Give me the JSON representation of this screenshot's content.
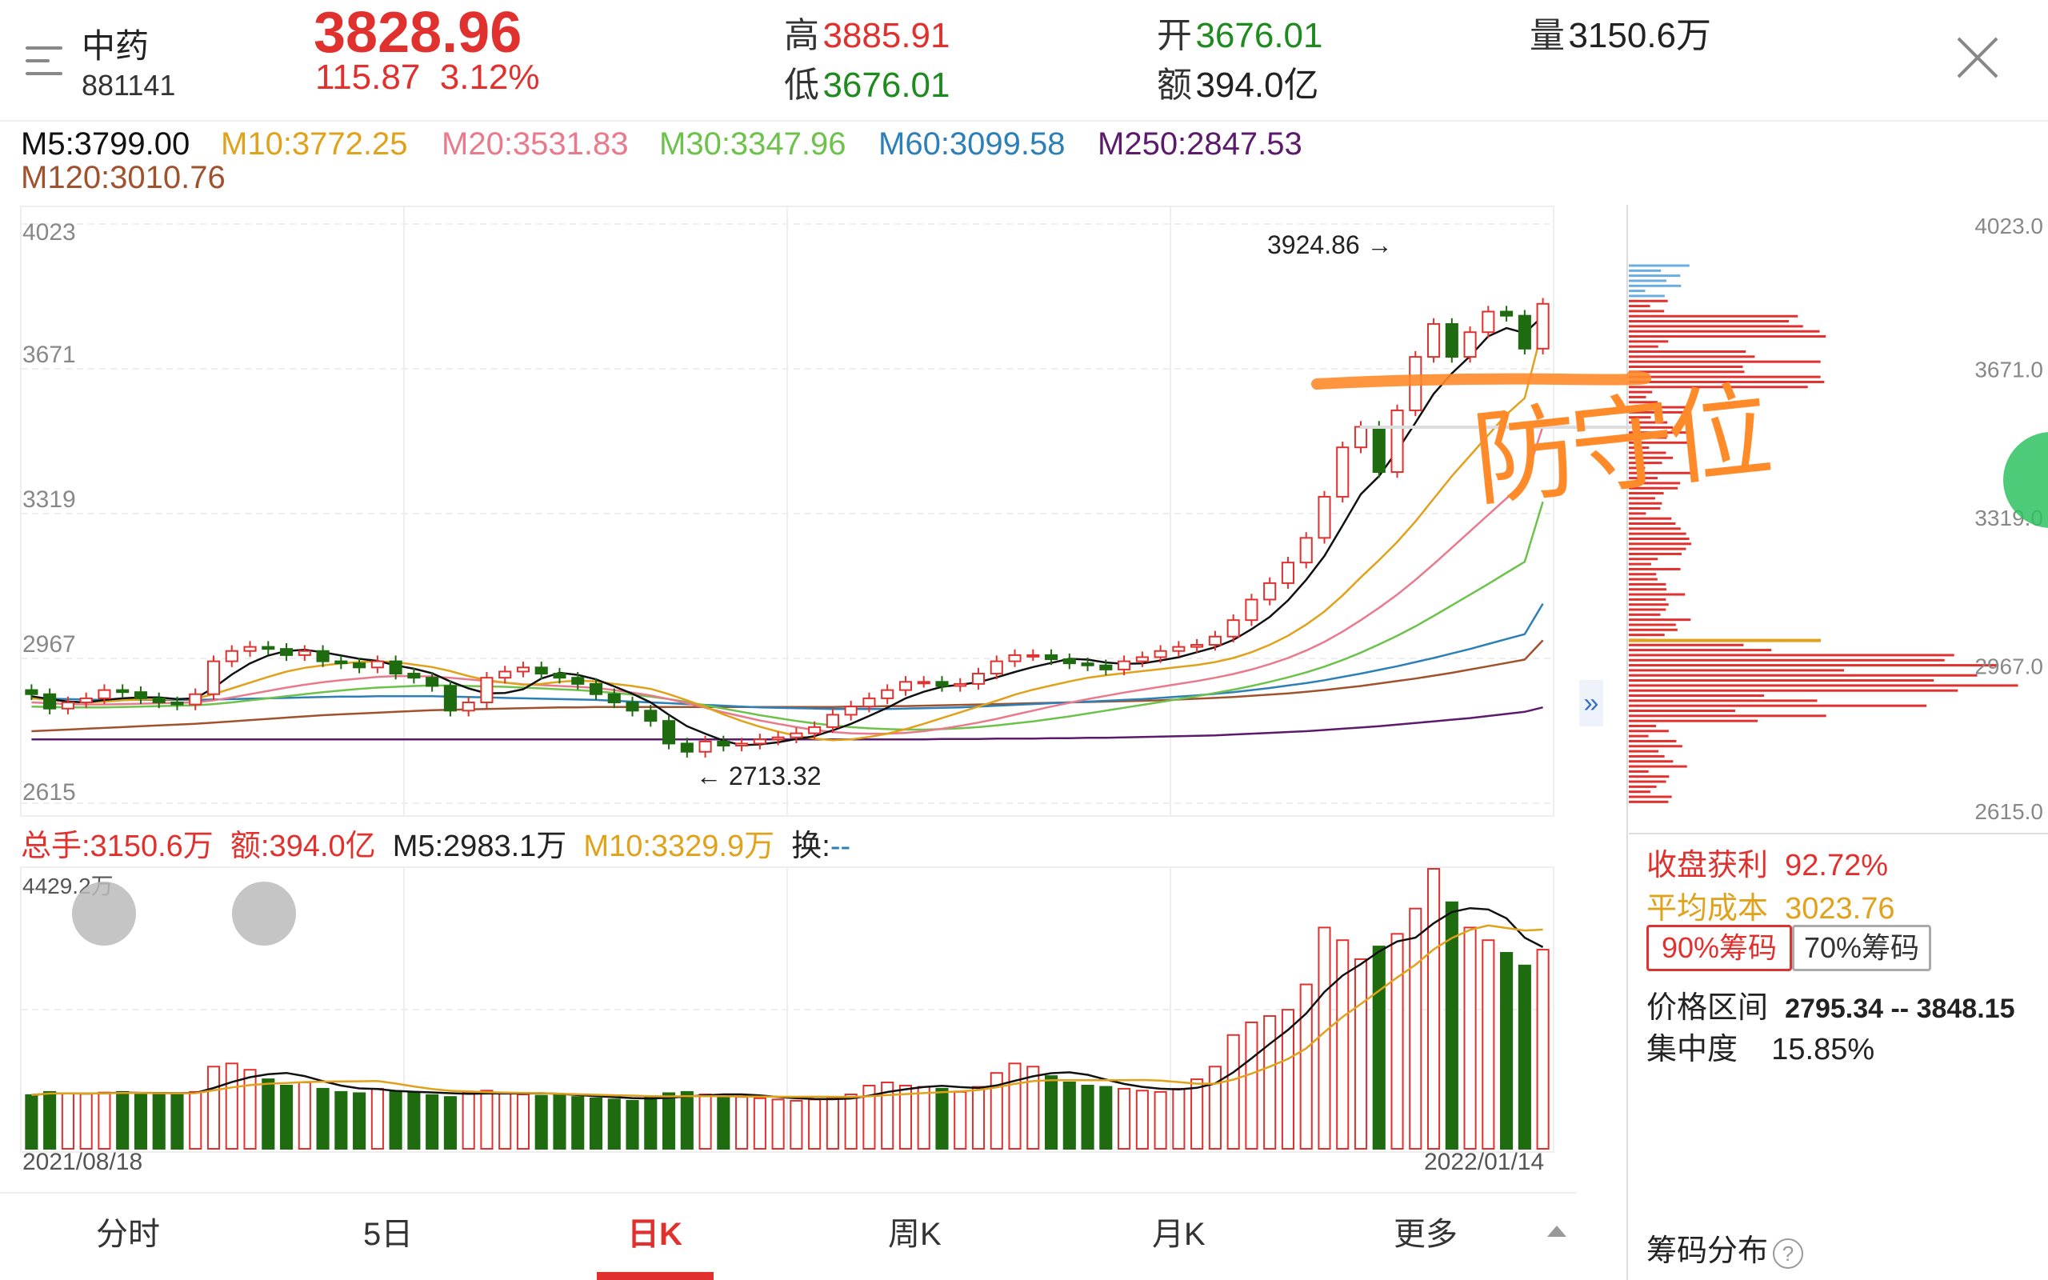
{
  "header": {
    "name": "中药",
    "code": "881141",
    "price": "3828.96",
    "change": "115.87",
    "change_pct": "3.12%",
    "high_label": "高",
    "high": "3885.91",
    "low_label": "低",
    "low": "3676.01",
    "open_label": "开",
    "open": "3676.01",
    "amount_label": "额",
    "amount": "394.0亿",
    "volume_label": "量",
    "volume": "3150.6万"
  },
  "ma_legend": {
    "m5": "M5:3799.00",
    "m10": "M10:3772.25",
    "m20": "M20:3531.83",
    "m30": "M30:3347.96",
    "m60": "M60:3099.58",
    "m250": "M250:2847.53",
    "m120": "M120:3010.76"
  },
  "colors": {
    "up": "#e0312e",
    "down": "#1f6b10",
    "m5": "#111111",
    "m10": "#e0a11b",
    "m20": "#e87a8c",
    "m30": "#6cc24a",
    "m60": "#2d7fb8",
    "m120": "#a0522d",
    "m250": "#5b1a6b",
    "annotation": "#ff8a2a"
  },
  "price_axis": [
    "4023",
    "3671",
    "3319",
    "2967",
    "2615"
  ],
  "chip_axis": [
    "4023.0",
    "3671.0",
    "3319.0",
    "2967.0",
    "2615.0"
  ],
  "annotations": {
    "high_label": "3924.86",
    "low_label": "2713.32",
    "handwritten": "防守位"
  },
  "volume_legend": {
    "total": "总手:3150.6万",
    "amount": "额:394.0亿",
    "m5": "M5:2983.1万",
    "m10": "M10:3329.9万",
    "turnover_label": "换:",
    "turnover_value": "--",
    "max": "4429.2万"
  },
  "dates": {
    "start": "2021/08/18",
    "end": "2022/01/14"
  },
  "chip": {
    "profit_label": "收盘获利",
    "profit": "92.72%",
    "avg_label": "平均成本",
    "avg": "3023.76",
    "btn90": "90%筹码",
    "btn70": "70%筹码",
    "range_label": "价格区间",
    "range": "2795.34 -- 3848.15",
    "conc_label": "集中度",
    "conc": "15.85%",
    "title": "筹码分布"
  },
  "tabs": [
    "分时",
    "5日",
    "日K",
    "周K",
    "月K",
    "更多"
  ],
  "active_tab": "日K",
  "chart_data": {
    "type": "candlestick",
    "ylim": [
      2615,
      4023
    ],
    "high": 3924.86,
    "low": 2713.32,
    "close": [
      2880,
      2845,
      2860,
      2870,
      2890,
      2885,
      2870,
      2860,
      2855,
      2880,
      2960,
      2985,
      2995,
      2990,
      2975,
      2985,
      2960,
      2955,
      2945,
      2960,
      2930,
      2920,
      2900,
      2840,
      2860,
      2920,
      2935,
      2945,
      2930,
      2920,
      2905,
      2880,
      2860,
      2840,
      2815,
      2760,
      2740,
      2765,
      2755,
      2760,
      2770,
      2775,
      2785,
      2800,
      2830,
      2850,
      2870,
      2890,
      2910,
      2910,
      2900,
      2905,
      2930,
      2960,
      2975,
      2975,
      2965,
      2955,
      2950,
      2940,
      2960,
      2970,
      2985,
      2995,
      3000,
      3020,
      3060,
      3110,
      3150,
      3200,
      3260,
      3360,
      3480,
      3530,
      3420,
      3570,
      3700,
      3780,
      3700,
      3760,
      3810,
      3800,
      3720,
      3829
    ],
    "volume": [
      850,
      900,
      880,
      870,
      890,
      900,
      880,
      870,
      860,
      900,
      1300,
      1350,
      1250,
      1100,
      1000,
      1050,
      950,
      900,
      880,
      950,
      900,
      880,
      850,
      820,
      900,
      920,
      880,
      860,
      840,
      850,
      820,
      800,
      780,
      760,
      820,
      880,
      900,
      860,
      840,
      820,
      800,
      780,
      760,
      780,
      800,
      860,
      1000,
      1050,
      1000,
      980,
      950,
      900,
      980,
      1200,
      1350,
      1300,
      1150,
      1050,
      1000,
      980,
      950,
      920,
      900,
      950,
      1100,
      1300,
      1800,
      2000,
      2100,
      2200,
      2600,
      3500,
      3300,
      3000,
      3200,
      3400,
      3800,
      4429,
      3900,
      3500,
      3300,
      3100,
      2900,
      3150
    ],
    "m5": [
      2875,
      2868,
      2862,
      2860,
      2866,
      2870,
      2872,
      2872,
      2868,
      2870,
      2895,
      2928,
      2955,
      2974,
      2985,
      2988,
      2982,
      2974,
      2966,
      2961,
      2950,
      2942,
      2931,
      2911,
      2894,
      2882,
      2883,
      2892,
      2918,
      2932,
      2927,
      2916,
      2899,
      2881,
      2860,
      2830,
      2802,
      2784,
      2767,
      2756,
      2758,
      2763,
      2771,
      2778,
      2792,
      2808,
      2827,
      2847,
      2870,
      2886,
      2898,
      2903,
      2909,
      2921,
      2934,
      2946,
      2956,
      2966,
      2964,
      2957,
      2954,
      2955,
      2962,
      2970,
      2982,
      2994,
      3012,
      3038,
      3068,
      3108,
      3158,
      3216,
      3290,
      3366,
      3410,
      3472,
      3540,
      3610,
      3660,
      3702,
      3750,
      3770,
      3758,
      3799
    ],
    "m10": [
      2870,
      2866,
      2862,
      2860,
      2862,
      2865,
      2867,
      2868,
      2868,
      2869,
      2880,
      2894,
      2908,
      2922,
      2935,
      2944,
      2950,
      2955,
      2958,
      2960,
      2958,
      2952,
      2946,
      2936,
      2924,
      2914,
      2908,
      2903,
      2905,
      2910,
      2913,
      2911,
      2905,
      2900,
      2893,
      2880,
      2865,
      2849,
      2831,
      2815,
      2801,
      2789,
      2779,
      2772,
      2768,
      2770,
      2776,
      2784,
      2795,
      2808,
      2822,
      2836,
      2850,
      2864,
      2879,
      2891,
      2901,
      2911,
      2920,
      2926,
      2931,
      2936,
      2941,
      2946,
      2951,
      2958,
      2968,
      2982,
      3000,
      3022,
      3049,
      3081,
      3120,
      3164,
      3206,
      3250,
      3300,
      3355,
      3410,
      3460,
      3510,
      3560,
      3600,
      3772
    ],
    "m20": [
      2860,
      2858,
      2856,
      2855,
      2855,
      2856,
      2857,
      2858,
      2859,
      2860,
      2865,
      2872,
      2880,
      2888,
      2896,
      2903,
      2909,
      2914,
      2918,
      2922,
      2924,
      2924,
      2923,
      2920,
      2916,
      2912,
      2908,
      2904,
      2902,
      2900,
      2898,
      2895,
      2890,
      2884,
      2877,
      2868,
      2858,
      2847,
      2836,
      2826,
      2816,
      2808,
      2800,
      2793,
      2788,
      2785,
      2784,
      2784,
      2786,
      2790,
      2796,
      2803,
      2811,
      2820,
      2830,
      2840,
      2850,
      2859,
      2868,
      2876,
      2884,
      2891,
      2898,
      2905,
      2912,
      2920,
      2929,
      2940,
      2953,
      2968,
      2986,
      3007,
      3032,
      3060,
      3090,
      3122,
      3158,
      3196,
      3236,
      3276,
      3316,
      3356,
      3394,
      3532
    ],
    "m30": [
      2850,
      2849,
      2848,
      2848,
      2848,
      2849,
      2850,
      2851,
      2852,
      2853,
      2856,
      2860,
      2865,
      2870,
      2875,
      2880,
      2885,
      2889,
      2893,
      2896,
      2898,
      2900,
      2901,
      2901,
      2900,
      2899,
      2898,
      2896,
      2894,
      2892,
      2890,
      2887,
      2883,
      2879,
      2874,
      2868,
      2861,
      2853,
      2845,
      2837,
      2829,
      2822,
      2815,
      2809,
      2804,
      2800,
      2797,
      2795,
      2794,
      2794,
      2795,
      2797,
      2800,
      2804,
      2809,
      2814,
      2820,
      2826,
      2833,
      2840,
      2847,
      2854,
      2861,
      2868,
      2875,
      2883,
      2891,
      2900,
      2910,
      2921,
      2933,
      2947,
      2963,
      2981,
      3001,
      3022,
      3045,
      3070,
      3096,
      3122,
      3148,
      3175,
      3202,
      3348
    ],
    "m60": [
      2870,
      2869,
      2868,
      2867,
      2866,
      2866,
      2866,
      2866,
      2866,
      2866,
      2867,
      2868,
      2869,
      2870,
      2871,
      2872,
      2873,
      2874,
      2874,
      2875,
      2875,
      2875,
      2875,
      2874,
      2873,
      2872,
      2871,
      2870,
      2869,
      2868,
      2867,
      2866,
      2864,
      2862,
      2860,
      2858,
      2856,
      2854,
      2852,
      2850,
      2848,
      2847,
      2846,
      2845,
      2844,
      2844,
      2844,
      2844,
      2845,
      2846,
      2847,
      2848,
      2850,
      2852,
      2854,
      2856,
      2858,
      2860,
      2862,
      2864,
      2866,
      2868,
      2871,
      2874,
      2877,
      2881,
      2885,
      2890,
      2895,
      2901,
      2907,
      2914,
      2922,
      2930,
      2939,
      2948,
      2958,
      2968,
      2979,
      2990,
      3002,
      3014,
      3026,
      3100
    ],
    "m120": [
      2790,
      2792,
      2794,
      2796,
      2798,
      2800,
      2802,
      2804,
      2806,
      2808,
      2811,
      2814,
      2817,
      2820,
      2823,
      2826,
      2829,
      2831,
      2833,
      2835,
      2837,
      2839,
      2841,
      2842,
      2843,
      2844,
      2845,
      2846,
      2847,
      2848,
      2848,
      2849,
      2849,
      2849,
      2849,
      2849,
      2849,
      2849,
      2849,
      2849,
      2849,
      2849,
      2849,
      2849,
      2849,
      2850,
      2850,
      2851,
      2851,
      2852,
      2853,
      2854,
      2855,
      2856,
      2857,
      2858,
      2859,
      2860,
      2861,
      2862,
      2863,
      2864,
      2865,
      2867,
      2869,
      2871,
      2873,
      2876,
      2879,
      2882,
      2886,
      2890,
      2895,
      2900,
      2906,
      2912,
      2918,
      2925,
      2932,
      2940,
      2948,
      2956,
      2964,
      3011
    ],
    "m250": [
      2770,
      2770,
      2770,
      2770,
      2770,
      2770,
      2770,
      2770,
      2770,
      2770,
      2770,
      2770,
      2770,
      2770,
      2770,
      2770,
      2770,
      2770,
      2770,
      2770,
      2770,
      2770,
      2770,
      2770,
      2770,
      2770,
      2770,
      2770,
      2770,
      2770,
      2770,
      2770,
      2770,
      2770,
      2770,
      2770,
      2770,
      2770,
      2770,
      2770,
      2770,
      2770,
      2770,
      2770,
      2770,
      2770,
      2770,
      2770,
      2770,
      2770,
      2771,
      2771,
      2771,
      2772,
      2772,
      2772,
      2773,
      2773,
      2774,
      2774,
      2775,
      2776,
      2777,
      2778,
      2779,
      2780,
      2782,
      2784,
      2786,
      2788,
      2790,
      2793,
      2796,
      2799,
      2802,
      2806,
      2810,
      2814,
      2818,
      2822,
      2827,
      2832,
      2837,
      2848
    ]
  }
}
